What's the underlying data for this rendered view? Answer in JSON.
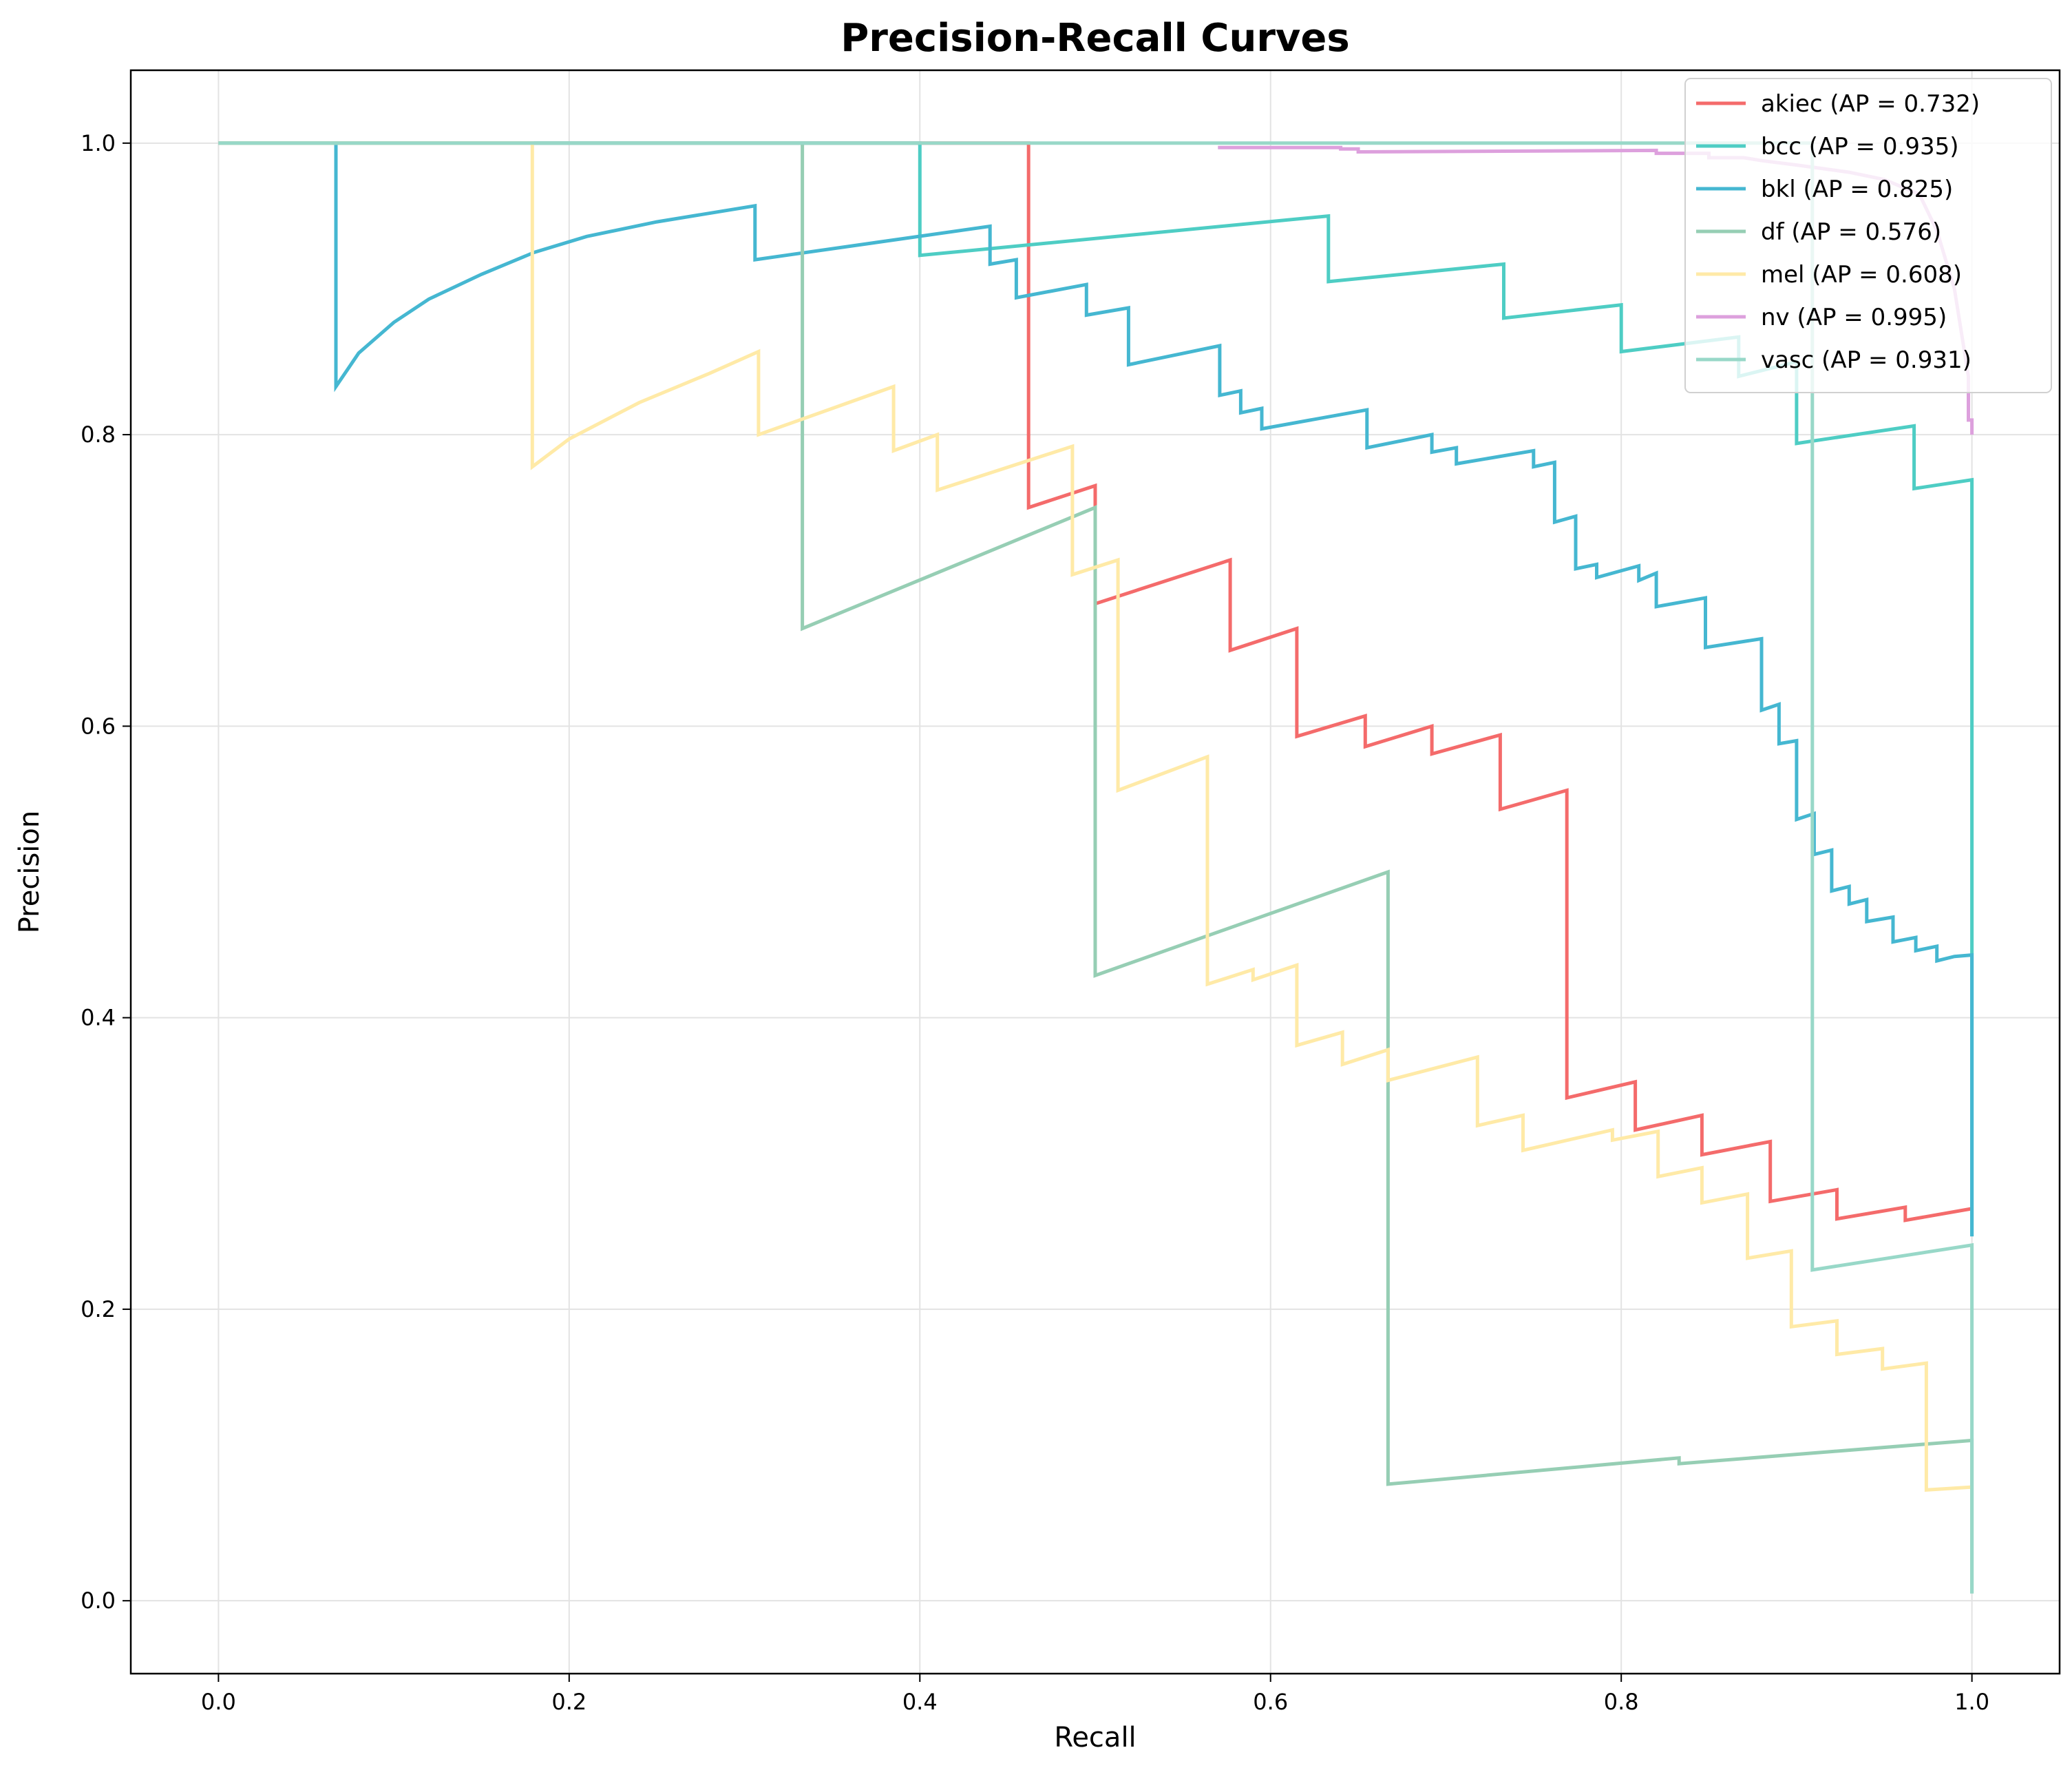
{
  "chart_data": {
    "type": "line",
    "title": "Precision-Recall Curves",
    "xlabel": "Recall",
    "ylabel": "Precision",
    "xlim": [
      -0.05,
      1.05
    ],
    "ylim": [
      -0.05,
      1.05
    ],
    "xticks": [
      "0.0",
      "0.2",
      "0.4",
      "0.6",
      "0.8",
      "1.0"
    ],
    "yticks": [
      "0.0",
      "0.2",
      "0.4",
      "0.6",
      "0.8",
      "1.0"
    ],
    "grid": true,
    "legend_position": "top-right",
    "series": [
      {
        "name": "akiec (AP = 0.732)",
        "color": "#f46b6b",
        "points": [
          [
            0,
            1
          ],
          [
            0.462,
            1
          ],
          [
            0.462,
            0.75
          ],
          [
            0.5,
            0.765
          ],
          [
            0.5,
            0.684
          ],
          [
            0.577,
            0.714
          ],
          [
            0.577,
            0.652
          ],
          [
            0.615,
            0.667
          ],
          [
            0.615,
            0.593
          ],
          [
            0.654,
            0.607
          ],
          [
            0.654,
            0.586
          ],
          [
            0.692,
            0.6
          ],
          [
            0.692,
            0.581
          ],
          [
            0.731,
            0.594
          ],
          [
            0.731,
            0.543
          ],
          [
            0.769,
            0.556
          ],
          [
            0.769,
            0.345
          ],
          [
            0.808,
            0.356
          ],
          [
            0.808,
            0.323
          ],
          [
            0.846,
            0.333
          ],
          [
            0.846,
            0.306
          ],
          [
            0.885,
            0.315
          ],
          [
            0.885,
            0.274
          ],
          [
            0.923,
            0.282
          ],
          [
            0.923,
            0.262
          ],
          [
            0.962,
            0.27
          ],
          [
            0.962,
            0.261
          ],
          [
            1,
            0.269
          ]
        ]
      },
      {
        "name": "bcc (AP = 0.935)",
        "color": "#4ecdc4",
        "points": [
          [
            0,
            1
          ],
          [
            0.4,
            1
          ],
          [
            0.4,
            0.923
          ],
          [
            0.633,
            0.95
          ],
          [
            0.633,
            0.905
          ],
          [
            0.733,
            0.917
          ],
          [
            0.733,
            0.88
          ],
          [
            0.8,
            0.889
          ],
          [
            0.8,
            0.857
          ],
          [
            0.867,
            0.867
          ],
          [
            0.867,
            0.84
          ],
          [
            0.9,
            0.85
          ],
          [
            0.9,
            0.794
          ],
          [
            0.967,
            0.806
          ],
          [
            0.967,
            0.763
          ],
          [
            1,
            0.769
          ],
          [
            1,
            0.25
          ]
        ]
      },
      {
        "name": "bkl (AP = 0.825)",
        "color": "#45b7d1",
        "points": [
          [
            0,
            1
          ],
          [
            0.067,
            1
          ],
          [
            0.067,
            0.833
          ],
          [
            0.08,
            0.856
          ],
          [
            0.1,
            0.877
          ],
          [
            0.12,
            0.893
          ],
          [
            0.15,
            0.91
          ],
          [
            0.18,
            0.925
          ],
          [
            0.21,
            0.936
          ],
          [
            0.25,
            0.946
          ],
          [
            0.306,
            0.957
          ],
          [
            0.306,
            0.92
          ],
          [
            0.44,
            0.943
          ],
          [
            0.44,
            0.917
          ],
          [
            0.455,
            0.92
          ],
          [
            0.455,
            0.894
          ],
          [
            0.495,
            0.903
          ],
          [
            0.495,
            0.882
          ],
          [
            0.519,
            0.887
          ],
          [
            0.519,
            0.848
          ],
          [
            0.571,
            0.861
          ],
          [
            0.571,
            0.827
          ],
          [
            0.583,
            0.83
          ],
          [
            0.583,
            0.815
          ],
          [
            0.595,
            0.818
          ],
          [
            0.595,
            0.804
          ],
          [
            0.655,
            0.817
          ],
          [
            0.655,
            0.791
          ],
          [
            0.692,
            0.8
          ],
          [
            0.692,
            0.788
          ],
          [
            0.706,
            0.791
          ],
          [
            0.706,
            0.78
          ],
          [
            0.75,
            0.789
          ],
          [
            0.75,
            0.778
          ],
          [
            0.762,
            0.781
          ],
          [
            0.762,
            0.74
          ],
          [
            0.774,
            0.744
          ],
          [
            0.774,
            0.708
          ],
          [
            0.786,
            0.711
          ],
          [
            0.786,
            0.702
          ],
          [
            0.81,
            0.71
          ],
          [
            0.81,
            0.7
          ],
          [
            0.82,
            0.705
          ],
          [
            0.82,
            0.682
          ],
          [
            0.848,
            0.688
          ],
          [
            0.848,
            0.654
          ],
          [
            0.88,
            0.66
          ],
          [
            0.88,
            0.611
          ],
          [
            0.89,
            0.615
          ],
          [
            0.89,
            0.588
          ],
          [
            0.9,
            0.59
          ],
          [
            0.9,
            0.536
          ],
          [
            0.91,
            0.54
          ],
          [
            0.91,
            0.512
          ],
          [
            0.92,
            0.515
          ],
          [
            0.92,
            0.487
          ],
          [
            0.93,
            0.49
          ],
          [
            0.93,
            0.478
          ],
          [
            0.94,
            0.481
          ],
          [
            0.94,
            0.466
          ],
          [
            0.955,
            0.469
          ],
          [
            0.955,
            0.452
          ],
          [
            0.968,
            0.455
          ],
          [
            0.968,
            0.446
          ],
          [
            0.98,
            0.449
          ],
          [
            0.98,
            0.439
          ],
          [
            0.99,
            0.442
          ],
          [
            1,
            0.443
          ],
          [
            1,
            0.25
          ]
        ]
      },
      {
        "name": "df (AP = 0.576)",
        "color": "#96ceb4",
        "points": [
          [
            0,
            1
          ],
          [
            0.333,
            1
          ],
          [
            0.333,
            0.667
          ],
          [
            0.5,
            0.75
          ],
          [
            0.5,
            0.429
          ],
          [
            0.667,
            0.5
          ],
          [
            0.667,
            0.08
          ],
          [
            0.833,
            0.098
          ],
          [
            0.833,
            0.094
          ],
          [
            1,
            0.11
          ],
          [
            1,
            0.005
          ]
        ]
      },
      {
        "name": "mel (AP = 0.608)",
        "color": "#ffeaa7",
        "points": [
          [
            0,
            1
          ],
          [
            0.179,
            1
          ],
          [
            0.179,
            0.778
          ],
          [
            0.2,
            0.797
          ],
          [
            0.24,
            0.822
          ],
          [
            0.28,
            0.842
          ],
          [
            0.308,
            0.857
          ],
          [
            0.308,
            0.8
          ],
          [
            0.385,
            0.833
          ],
          [
            0.385,
            0.789
          ],
          [
            0.41,
            0.8
          ],
          [
            0.41,
            0.762
          ],
          [
            0.487,
            0.792
          ],
          [
            0.487,
            0.704
          ],
          [
            0.513,
            0.714
          ],
          [
            0.513,
            0.556
          ],
          [
            0.564,
            0.579
          ],
          [
            0.564,
            0.423
          ],
          [
            0.59,
            0.433
          ],
          [
            0.59,
            0.426
          ],
          [
            0.615,
            0.436
          ],
          [
            0.615,
            0.381
          ],
          [
            0.641,
            0.39
          ],
          [
            0.641,
            0.368
          ],
          [
            0.667,
            0.378
          ],
          [
            0.667,
            0.357
          ],
          [
            0.718,
            0.373
          ],
          [
            0.718,
            0.326
          ],
          [
            0.744,
            0.333
          ],
          [
            0.744,
            0.309
          ],
          [
            0.795,
            0.323
          ],
          [
            0.795,
            0.316
          ],
          [
            0.821,
            0.322
          ],
          [
            0.821,
            0.291
          ],
          [
            0.846,
            0.297
          ],
          [
            0.846,
            0.273
          ],
          [
            0.872,
            0.279
          ],
          [
            0.872,
            0.235
          ],
          [
            0.897,
            0.24
          ],
          [
            0.897,
            0.188
          ],
          [
            0.923,
            0.192
          ],
          [
            0.923,
            0.169
          ],
          [
            0.949,
            0.173
          ],
          [
            0.949,
            0.159
          ],
          [
            0.974,
            0.163
          ],
          [
            0.974,
            0.076
          ],
          [
            1,
            0.078
          ]
        ]
      },
      {
        "name": "nv (AP = 0.995)",
        "color": "#dda0dd",
        "points": [
          [
            0.57,
            0.997
          ],
          [
            0.64,
            0.997
          ],
          [
            0.64,
            0.996
          ],
          [
            0.65,
            0.996
          ],
          [
            0.65,
            0.994
          ],
          [
            0.82,
            0.995
          ],
          [
            0.82,
            0.993
          ],
          [
            0.85,
            0.993
          ],
          [
            0.85,
            0.99
          ],
          [
            0.87,
            0.99
          ],
          [
            0.88,
            0.988
          ],
          [
            0.9,
            0.985
          ],
          [
            0.93,
            0.98
          ],
          [
            0.95,
            0.975
          ],
          [
            0.97,
            0.965
          ],
          [
            0.98,
            0.94
          ],
          [
            0.99,
            0.9
          ],
          [
            0.998,
            0.84
          ],
          [
            0.998,
            0.81
          ],
          [
            1,
            0.81
          ],
          [
            1,
            0.8
          ]
        ]
      },
      {
        "name": "vasc (AP = 0.931)",
        "color": "#98d8c8",
        "points": [
          [
            0,
            1
          ],
          [
            0.909,
            1
          ],
          [
            0.909,
            0.227
          ],
          [
            1,
            0.244
          ],
          [
            1,
            0.005
          ]
        ]
      }
    ]
  }
}
